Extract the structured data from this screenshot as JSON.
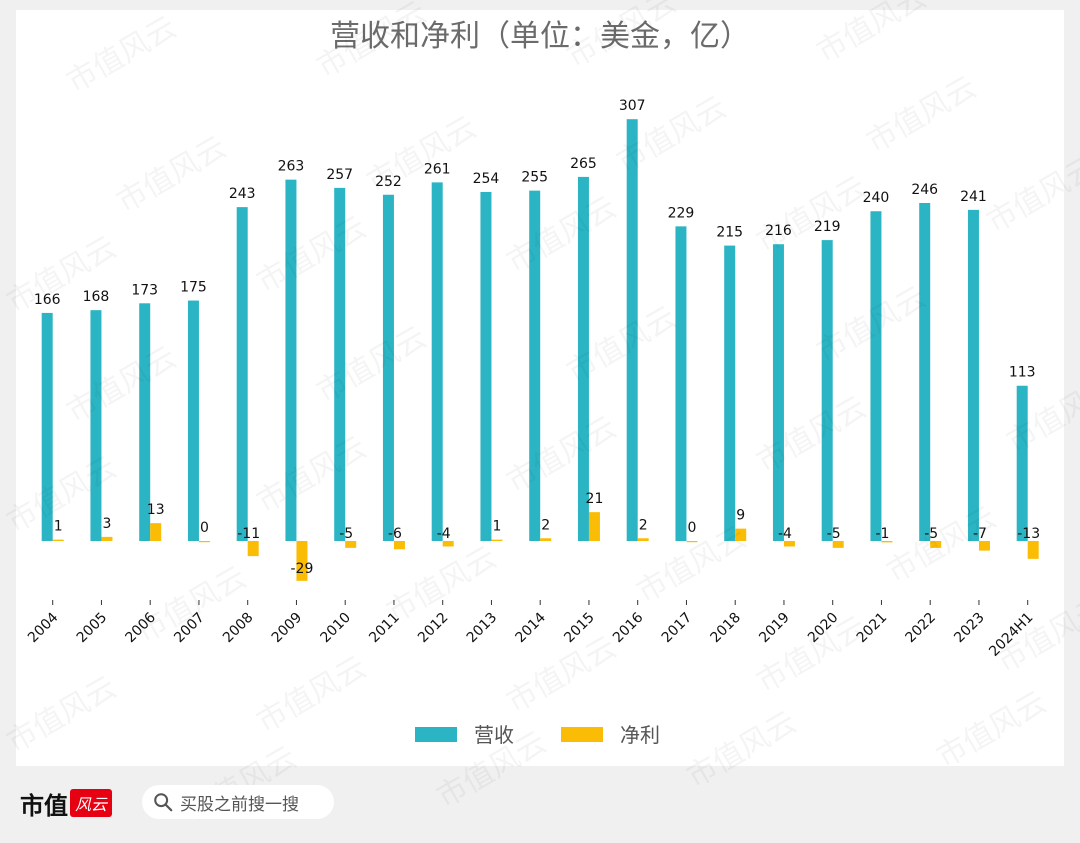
{
  "chart_data": {
    "type": "bar",
    "title": "营收和净利（单位：美金，亿）",
    "categories": [
      "2004",
      "2005",
      "2006",
      "2007",
      "2008",
      "2009",
      "2010",
      "2011",
      "2012",
      "2013",
      "2014",
      "2015",
      "2016",
      "2017",
      "2018",
      "2019",
      "2020",
      "2021",
      "2022",
      "2023",
      "2024H1"
    ],
    "series": [
      {
        "name": "营收",
        "color": "#2bb5c4",
        "values": [
          166,
          168,
          173,
          175,
          243,
          263,
          257,
          252,
          261,
          254,
          255,
          265,
          307,
          229,
          215,
          216,
          219,
          240,
          246,
          241,
          113
        ]
      },
      {
        "name": "净利",
        "color": "#fbbc05",
        "values": [
          1,
          3,
          13,
          0,
          -11,
          -29,
          -5,
          -6,
          -4,
          1,
          2,
          21,
          2,
          0,
          9,
          -4,
          -5,
          -1,
          -5,
          -7,
          -13
        ]
      }
    ],
    "xlabel": "",
    "ylabel": "",
    "ylim": [
      -35,
      320
    ],
    "grid": false,
    "legend_position": "bottom-center"
  },
  "watermark_text": "市值风云",
  "footer": {
    "brand": "市值",
    "brand_badge": "风云",
    "search_placeholder": "买股之前搜一搜"
  }
}
